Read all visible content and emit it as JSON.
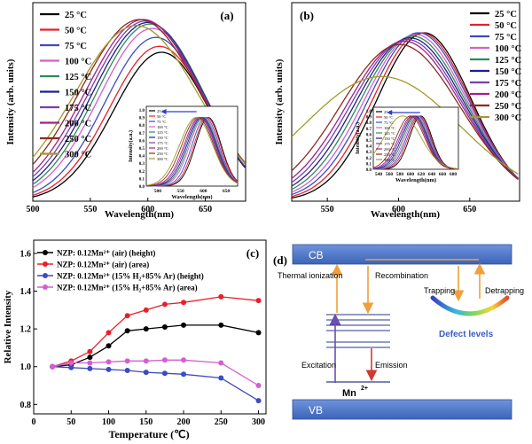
{
  "colors": {
    "series": [
      "#000000",
      "#e8202a",
      "#3b4cc0",
      "#d45fd0",
      "#2e8b57",
      "#1e1e8c",
      "#7a3fa8",
      "#a0208e",
      "#8b2b1f",
      "#a39a2c"
    ],
    "cb_vb": "#4a72c4",
    "arrow_orange": "#f0a03a",
    "arrow_purple": "#6a4fb0",
    "arrow_red": "#d23a30",
    "defect_text": "#3a5bc7"
  },
  "chart_data": [
    {
      "panel": "(a)",
      "type": "line",
      "xlabel": "Wavelength(nm)",
      "ylabel": "Intensity (arb. units)",
      "xlim": [
        500,
        685
      ],
      "x_ticks": [
        "500",
        "550",
        "600",
        "650"
      ],
      "x_tick_values": [
        500,
        550,
        600,
        650
      ],
      "legend_position": "top-left",
      "series": [
        {
          "name": "25 °C",
          "peak": 612,
          "amp": 1.0,
          "width": 42
        },
        {
          "name": "50 °C",
          "peak": 610,
          "amp": 1.04,
          "width": 43
        },
        {
          "name": "75 °C",
          "peak": 607,
          "amp": 1.1,
          "width": 44
        },
        {
          "name": "100 °C",
          "peak": 604,
          "amp": 1.16,
          "width": 46
        },
        {
          "name": "125 °C",
          "peak": 602,
          "amp": 1.19,
          "width": 47
        },
        {
          "name": "150 °C",
          "peak": 600,
          "amp": 1.2,
          "width": 48
        },
        {
          "name": "175 °C",
          "peak": 598,
          "amp": 1.21,
          "width": 49
        },
        {
          "name": "200 °C",
          "peak": 596,
          "amp": 1.22,
          "width": 50
        },
        {
          "name": "250 °C",
          "peak": 593,
          "amp": 1.22,
          "width": 52
        },
        {
          "name": "300 °C",
          "peak": 590,
          "amp": 1.18,
          "width": 54
        }
      ],
      "inset": {
        "xlabel": "Wavelength(nm)",
        "ylabel": "Intensity(a.u.)",
        "xlim": [
          500,
          665
        ],
        "x_ticks": [
          "500",
          "550",
          "600",
          "650"
        ],
        "y_ticks": [
          "0.0",
          "0.1",
          "0.2",
          "0.3",
          "0.4",
          "0.5",
          "0.6",
          "0.7",
          "0.8",
          "0.9",
          "1.0"
        ],
        "legend": [
          "25 °C",
          "50 °C",
          "75 °C",
          "100 °C",
          "125 °C",
          "150 °C",
          "175 °C",
          "200 °C",
          "250 °C",
          "300 °C"
        ]
      }
    },
    {
      "panel": "(b)",
      "type": "line",
      "xlabel": "Wavelength(nm)",
      "ylabel": "Intensity (arb. units)",
      "xlim": [
        525,
        685
      ],
      "x_ticks": [
        "550",
        "600",
        "650"
      ],
      "x_tick_values": [
        550,
        600,
        650
      ],
      "legend_position": "top-right",
      "series": [
        {
          "name": "25 °C",
          "peak": 618,
          "amp": 1.0,
          "width": 33
        },
        {
          "name": "50 °C",
          "peak": 616,
          "amp": 1.0,
          "width": 34
        },
        {
          "name": "75 °C",
          "peak": 614,
          "amp": 1.0,
          "width": 35
        },
        {
          "name": "100 °C",
          "peak": 612,
          "amp": 0.99,
          "width": 36
        },
        {
          "name": "125 °C",
          "peak": 610,
          "amp": 0.98,
          "width": 37
        },
        {
          "name": "150 °C",
          "peak": 608,
          "amp": 0.97,
          "width": 38
        },
        {
          "name": "175 °C",
          "peak": 606,
          "amp": 0.96,
          "width": 39
        },
        {
          "name": "200 °C",
          "peak": 604,
          "amp": 0.95,
          "width": 40
        },
        {
          "name": "250 °C",
          "peak": 601,
          "amp": 0.93,
          "width": 42
        },
        {
          "name": "300 °C",
          "peak": 588,
          "amp": 0.74,
          "width": 55
        }
      ],
      "inset": {
        "xlabel": "Wavelength(nm)",
        "ylabel": "Intensity(a.u.)",
        "xlim": [
          540,
          680
        ],
        "x_ticks": [
          "540",
          "560",
          "580",
          "600",
          "620",
          "640",
          "660",
          "680"
        ],
        "y_ticks": [
          "0.0",
          "0.1",
          "0.2",
          "0.3",
          "0.4",
          "0.5",
          "0.6",
          "0.7",
          "0.8",
          "0.9",
          "1.0"
        ],
        "legend": [
          "25 °C",
          "50 °C",
          "75 °C",
          "100 °C",
          "125 °C",
          "150 °C",
          "175 °C",
          "200 °C",
          "250 °C",
          "300 °C"
        ]
      }
    },
    {
      "panel": "(c)",
      "type": "line",
      "xlabel": "Temperature (℃)",
      "ylabel": "Relative Intensity",
      "xlim": [
        0,
        310
      ],
      "ylim": [
        0.75,
        1.67
      ],
      "x_ticks": [
        "0",
        "50",
        "100",
        "150",
        "200",
        "250",
        "300"
      ],
      "x_tick_values": [
        0,
        50,
        100,
        150,
        200,
        250,
        300
      ],
      "y_ticks": [
        "0.8",
        "1.0",
        "1.2",
        "1.4",
        "1.6"
      ],
      "y_tick_values": [
        0.8,
        1.0,
        1.2,
        1.4,
        1.6
      ],
      "x": [
        25,
        50,
        75,
        100,
        125,
        150,
        175,
        200,
        250,
        300
      ],
      "legend_position": "top-left",
      "series": [
        {
          "name": "NZP: 0.12Mn²⁺ (air) (height)",
          "color": "#000000",
          "values": [
            1.0,
            1.01,
            1.05,
            1.11,
            1.19,
            1.2,
            1.21,
            1.22,
            1.22,
            1.18
          ]
        },
        {
          "name": "NZP: 0.12Mn²⁺ (air) (area)",
          "color": "#e8202a",
          "values": [
            1.0,
            1.03,
            1.08,
            1.18,
            1.27,
            1.3,
            1.33,
            1.34,
            1.37,
            1.35
          ]
        },
        {
          "name": "NZP: 0.12Mn²⁺ (15% H₂+85% Ar) (height)",
          "color": "#3b4cc0",
          "values": [
            1.0,
            0.995,
            0.99,
            0.985,
            0.98,
            0.97,
            0.965,
            0.96,
            0.94,
            0.82
          ]
        },
        {
          "name": "NZP: 0.12Mn²⁺ (15% H₂+85% Ar) (area)",
          "color": "#d45fd0",
          "values": [
            1.0,
            1.02,
            1.02,
            1.025,
            1.03,
            1.03,
            1.035,
            1.035,
            1.02,
            0.9
          ]
        }
      ]
    }
  ],
  "diagram_d": {
    "panel": "(d)",
    "cb_label": "CB",
    "vb_label": "VB",
    "thermal_ionization": "Thermal ionization",
    "recombination": "Recombination",
    "trapping": "Trapping",
    "detrapping": "Detrapping",
    "defect_levels": "Defect levels",
    "excitation": "Excitation",
    "emission": "Emission",
    "mn_label": "Mn",
    "mn_superscript": "2+"
  }
}
